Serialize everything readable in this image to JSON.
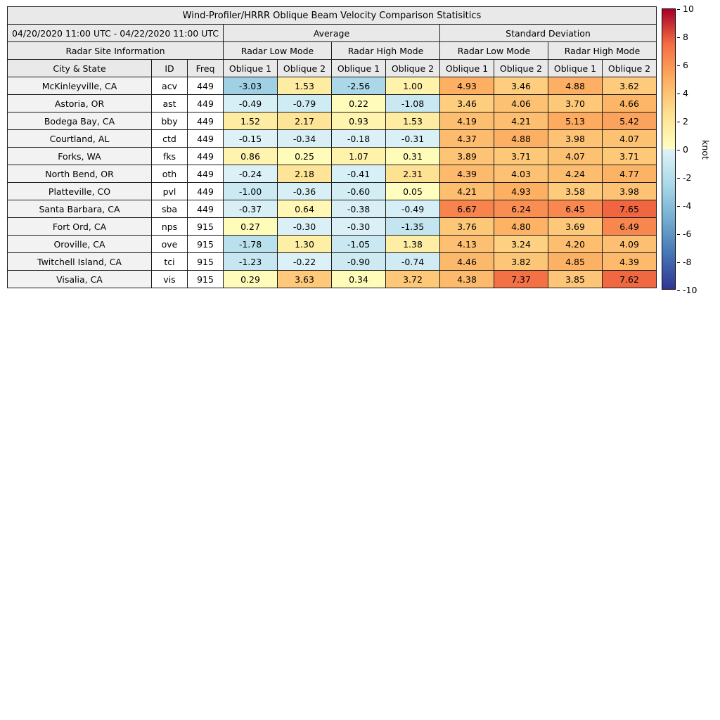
{
  "table": {
    "title": "Wind-Profiler/HRRR Oblique Beam Velocity Comparison Statisitics",
    "date_range": "04/20/2020 11:00 UTC - 04/22/2020 11:00 UTC",
    "group_labels": {
      "average": "Average",
      "stddev": "Standard Deviation"
    },
    "site_info_label": "Radar Site Information",
    "mode_labels": [
      "Radar Low Mode",
      "Radar High Mode",
      "Radar Low Mode",
      "Radar High Mode"
    ],
    "columns": [
      "City & State",
      "ID",
      "Freq",
      "Oblique 1",
      "Oblique 2",
      "Oblique 1",
      "Oblique 2",
      "Oblique 1",
      "Oblique 2",
      "Oblique 1",
      "Oblique 2"
    ]
  },
  "colorbar": {
    "label": "knot",
    "min": -10,
    "max": 10,
    "ticks": [
      10,
      8,
      6,
      4,
      2,
      0,
      -2,
      -4,
      -6,
      -8,
      -10
    ],
    "anchors": [
      [
        -10,
        "#313695"
      ],
      [
        -7.5,
        "#4575b4"
      ],
      [
        -5,
        "#74add1"
      ],
      [
        -2.5,
        "#abd9e9"
      ],
      [
        -0.001,
        "#e0f3f8"
      ],
      [
        0.001,
        "#ffffbf"
      ],
      [
        2.5,
        "#fee090"
      ],
      [
        5,
        "#fdae61"
      ],
      [
        7.5,
        "#f46d43"
      ],
      [
        10,
        "#a50026"
      ]
    ]
  },
  "chart_data": {
    "type": "heatmap",
    "title": "Wind-Profiler/HRRR Oblique Beam Velocity Comparison Statisitics",
    "unit": "knot",
    "vmin": -10,
    "vmax": 10,
    "value_columns": [
      "Average / Radar Low Mode / Oblique 1",
      "Average / Radar Low Mode / Oblique 2",
      "Average / Radar High Mode / Oblique 1",
      "Average / Radar High Mode / Oblique 2",
      "Standard Deviation / Radar Low Mode / Oblique 1",
      "Standard Deviation / Radar Low Mode / Oblique 2",
      "Standard Deviation / Radar High Mode / Oblique 1",
      "Standard Deviation / Radar High Mode / Oblique 2"
    ],
    "rows": [
      {
        "city": "McKinleyville, CA",
        "id": "acv",
        "freq": 449,
        "values": [
          -3.03,
          1.53,
          -2.56,
          1.0,
          4.93,
          3.46,
          4.88,
          3.62
        ]
      },
      {
        "city": "Astoria, OR",
        "id": "ast",
        "freq": 449,
        "values": [
          -0.49,
          -0.79,
          0.22,
          -1.08,
          3.46,
          4.06,
          3.7,
          4.66
        ]
      },
      {
        "city": "Bodega Bay, CA",
        "id": "bby",
        "freq": 449,
        "values": [
          1.52,
          2.17,
          0.93,
          1.53,
          4.19,
          4.21,
          5.13,
          5.42
        ]
      },
      {
        "city": "Courtland, AL",
        "id": "ctd",
        "freq": 449,
        "values": [
          -0.15,
          -0.34,
          -0.18,
          -0.31,
          4.37,
          4.88,
          3.98,
          4.07
        ]
      },
      {
        "city": "Forks, WA",
        "id": "fks",
        "freq": 449,
        "values": [
          0.86,
          0.25,
          1.07,
          0.31,
          3.89,
          3.71,
          4.07,
          3.71
        ]
      },
      {
        "city": "North Bend, OR",
        "id": "oth",
        "freq": 449,
        "values": [
          -0.24,
          2.18,
          -0.41,
          2.31,
          4.39,
          4.03,
          4.24,
          4.77
        ]
      },
      {
        "city": "Platteville, CO",
        "id": "pvl",
        "freq": 449,
        "values": [
          -1.0,
          -0.36,
          -0.6,
          0.05,
          4.21,
          4.93,
          3.58,
          3.98
        ]
      },
      {
        "city": "Santa Barbara, CA",
        "id": "sba",
        "freq": 449,
        "values": [
          -0.37,
          0.64,
          -0.38,
          -0.49,
          6.67,
          6.24,
          6.45,
          7.65
        ]
      },
      {
        "city": "Fort Ord, CA",
        "id": "nps",
        "freq": 915,
        "values": [
          0.27,
          -0.3,
          -0.3,
          -1.35,
          3.76,
          4.8,
          3.69,
          6.49
        ]
      },
      {
        "city": "Oroville, CA",
        "id": "ove",
        "freq": 915,
        "values": [
          -1.78,
          1.3,
          -1.05,
          1.38,
          4.13,
          3.24,
          4.2,
          4.09
        ]
      },
      {
        "city": "Twitchell Island, CA",
        "id": "tci",
        "freq": 915,
        "values": [
          -1.23,
          -0.22,
          -0.9,
          -0.74,
          4.46,
          3.82,
          4.85,
          4.39
        ]
      },
      {
        "city": "Visalia, CA",
        "id": "vis",
        "freq": 915,
        "values": [
          0.29,
          3.63,
          0.34,
          3.72,
          4.38,
          7.37,
          3.85,
          7.62
        ]
      }
    ]
  }
}
